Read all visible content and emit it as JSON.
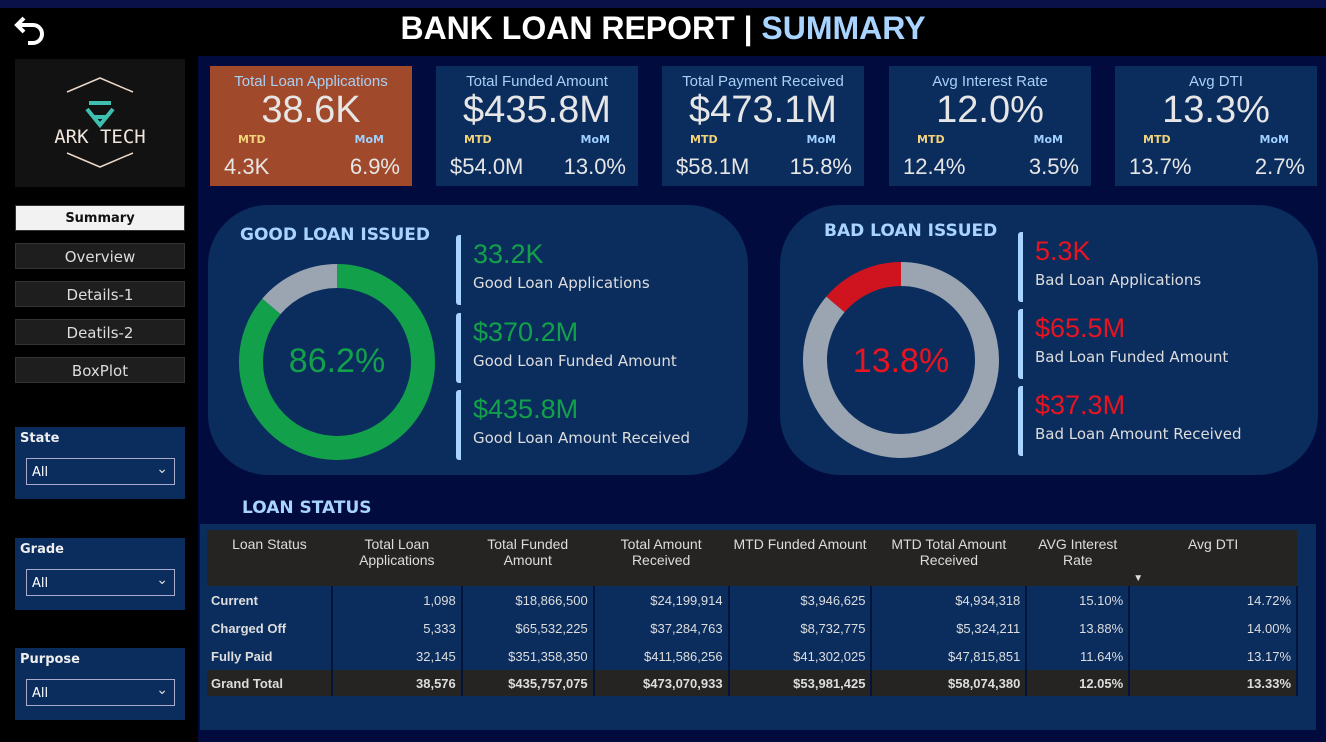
{
  "header": {
    "title": "BANK LOAN REPORT | ",
    "title_highlight": "SUMMARY",
    "back_icon": "undo-arrow-icon"
  },
  "logo": {
    "text": "ARK TECH"
  },
  "nav": [
    {
      "label": "Summary",
      "active": true
    },
    {
      "label": "Overview"
    },
    {
      "label": "Details-1"
    },
    {
      "label": "Deatils-2"
    },
    {
      "label": "BoxPlot"
    }
  ],
  "filters": [
    {
      "label": "State",
      "value": "All"
    },
    {
      "label": "Grade",
      "value": "All"
    },
    {
      "label": "Purpose",
      "value": "All"
    }
  ],
  "kpis": [
    {
      "title": "Total Loan Applications",
      "value": "38.6K",
      "mtd_label": "MTD",
      "mom_label": "MoM",
      "mtd": "4.3K",
      "mom": "6.9%",
      "highlight": true
    },
    {
      "title": "Total Funded Amount",
      "value": "$435.8M",
      "mtd_label": "MTD",
      "mom_label": "MoM",
      "mtd": "$54.0M",
      "mom": "13.0%"
    },
    {
      "title": "Total Payment Received",
      "value": "$473.1M",
      "mtd_label": "MTD",
      "mom_label": "MoM",
      "mtd": "$58.1M",
      "mom": "15.8%"
    },
    {
      "title": "Avg Interest Rate",
      "value": "12.0%",
      "mtd_label": "MTD",
      "mom_label": "MoM",
      "mtd": "12.4%",
      "mom": "3.5%"
    },
    {
      "title": "Avg  DTI",
      "value": "13.3%",
      "mtd_label": "MTD",
      "mom_label": "MoM",
      "mtd": "13.7%",
      "mom": "2.7%"
    }
  ],
  "good": {
    "title": "GOOD LOAN ISSUED",
    "pct_label": "86.2%",
    "pct": 86.2,
    "color": "#12a04a",
    "rest_color": "#9aa5b1",
    "stats": [
      {
        "value": "33.2K",
        "label": "Good Loan Applications"
      },
      {
        "value": "$370.2M",
        "label": "Good Loan Funded Amount"
      },
      {
        "value": "$435.8M",
        "label": "Good Loan Amount Received"
      }
    ]
  },
  "bad": {
    "title": "BAD LOAN ISSUED",
    "pct_label": "13.8%",
    "pct": 13.8,
    "color": "#d0141f",
    "rest_color": "#9aa5b1",
    "stats": [
      {
        "value": "5.3K",
        "label": "Bad Loan Applications"
      },
      {
        "value": "$65.5M",
        "label": "Bad Loan Funded Amount"
      },
      {
        "value": "$37.3M",
        "label": "Bad Loan Amount Received"
      }
    ]
  },
  "loan_status": {
    "title": "LOAN STATUS",
    "columns": [
      "Loan Status",
      "Total Loan Applications",
      "Total Funded Amount",
      "Total Amount Received",
      "MTD Funded Amount",
      "MTD Total Amount Received",
      "AVG Interest Rate",
      "Avg DTI"
    ],
    "rows": [
      [
        "Current",
        "1,098",
        "$18,866,500",
        "$24,199,914",
        "$3,946,625",
        "$4,934,318",
        "15.10%",
        "14.72%"
      ],
      [
        "Charged Off",
        "5,333",
        "$65,532,225",
        "$37,284,763",
        "$8,732,775",
        "$5,324,211",
        "13.88%",
        "14.00%"
      ],
      [
        "Fully Paid",
        "32,145",
        "$351,358,350",
        "$411,586,256",
        "$41,302,025",
        "$47,815,851",
        "11.64%",
        "13.17%"
      ]
    ],
    "total": [
      "Grand Total",
      "38,576",
      "$435,757,075",
      "$473,070,933",
      "$53,981,425",
      "$58,074,380",
      "12.05%",
      "13.33%"
    ],
    "sort_icon": "sort-descending-icon"
  }
}
